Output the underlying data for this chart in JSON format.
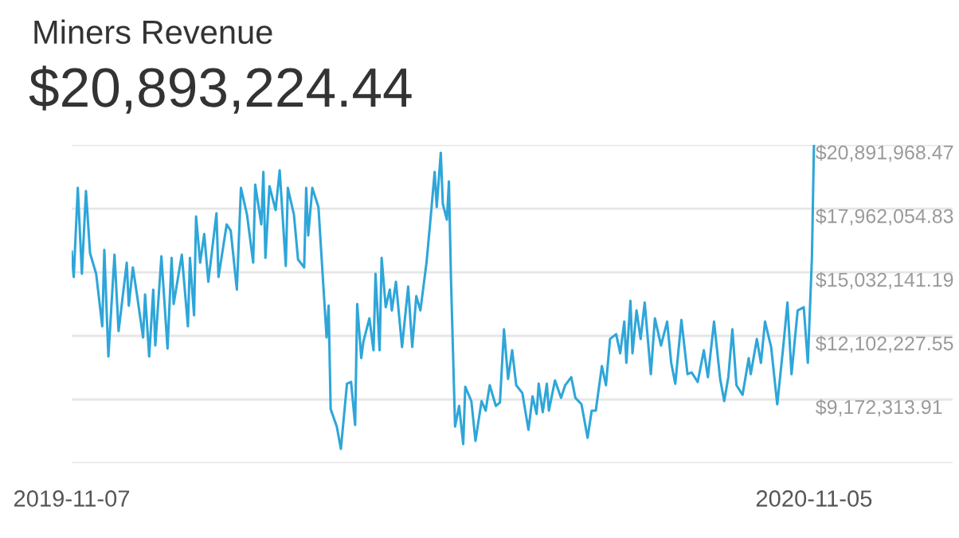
{
  "chart_data": {
    "type": "line",
    "title": "Miners Revenue",
    "subtitle": "$20,893,224.44",
    "x": [
      "2019-11-07",
      "2019-11-08",
      "2019-11-10",
      "2019-11-12",
      "2019-11-14",
      "2019-11-16",
      "2019-11-19",
      "2019-11-22",
      "2019-11-23",
      "2019-11-25",
      "2019-11-28",
      "2019-11-30",
      "2019-12-04",
      "2019-12-05",
      "2019-12-07",
      "2019-12-09",
      "2019-12-12",
      "2019-12-13",
      "2019-12-15",
      "2019-12-17",
      "2019-12-18",
      "2019-12-21",
      "2019-12-24",
      "2019-12-26",
      "2019-12-27",
      "2019-12-31",
      "2020-01-03",
      "2020-01-04",
      "2020-01-06",
      "2020-01-07",
      "2020-01-09",
      "2020-01-11",
      "2020-01-13",
      "2020-01-17",
      "2020-01-18",
      "2020-01-22",
      "2020-01-24",
      "2020-01-27",
      "2020-01-29",
      "2020-02-01",
      "2020-02-04",
      "2020-02-05",
      "2020-02-08",
      "2020-02-09",
      "2020-02-10",
      "2020-02-12",
      "2020-02-15",
      "2020-02-17",
      "2020-02-20",
      "2020-02-21",
      "2020-02-24",
      "2020-02-26",
      "2020-02-29",
      "2020-03-01",
      "2020-03-02",
      "2020-03-04",
      "2020-03-07",
      "2020-03-11",
      "2020-03-12",
      "2020-03-13",
      "2020-03-16",
      "2020-03-18",
      "2020-03-21",
      "2020-03-23",
      "2020-03-25",
      "2020-03-26",
      "2020-03-28",
      "2020-03-29",
      "2020-04-01",
      "2020-04-03",
      "2020-04-04",
      "2020-04-06",
      "2020-04-07",
      "2020-04-09",
      "2020-04-11",
      "2020-04-12",
      "2020-04-14",
      "2020-04-17",
      "2020-04-20",
      "2020-04-22",
      "2020-04-24",
      "2020-04-26",
      "2020-04-29",
      "2020-05-01",
      "2020-05-03",
      "2020-05-04",
      "2020-05-06",
      "2020-05-07",
      "2020-05-09",
      "2020-05-10",
      "2020-05-11",
      "2020-05-13",
      "2020-05-15",
      "2020-05-17",
      "2020-05-18",
      "2020-05-21",
      "2020-05-23",
      "2020-05-26",
      "2020-05-28",
      "2020-05-30",
      "2020-06-02",
      "2020-06-04",
      "2020-06-06",
      "2020-06-08",
      "2020-06-10",
      "2020-06-12",
      "2020-06-15",
      "2020-06-18",
      "2020-06-20",
      "2020-06-22",
      "2020-06-23",
      "2020-06-25",
      "2020-06-27",
      "2020-06-28",
      "2020-07-01",
      "2020-07-04",
      "2020-07-06",
      "2020-07-09",
      "2020-07-11",
      "2020-07-14",
      "2020-07-17",
      "2020-07-19",
      "2020-07-21",
      "2020-07-24",
      "2020-07-26",
      "2020-07-28",
      "2020-07-31",
      "2020-08-02",
      "2020-08-04",
      "2020-08-05",
      "2020-08-07",
      "2020-08-08",
      "2020-08-10",
      "2020-08-12",
      "2020-08-14",
      "2020-08-17",
      "2020-08-19",
      "2020-08-22",
      "2020-08-25",
      "2020-08-27",
      "2020-08-29",
      "2020-09-01",
      "2020-09-04",
      "2020-09-06",
      "2020-09-09",
      "2020-09-12",
      "2020-09-14",
      "2020-09-17",
      "2020-09-20",
      "2020-09-22",
      "2020-09-24",
      "2020-09-26",
      "2020-09-28",
      "2020-10-01",
      "2020-10-04",
      "2020-10-05",
      "2020-10-08",
      "2020-10-10",
      "2020-10-12",
      "2020-10-15",
      "2020-10-18",
      "2020-10-21",
      "2020-10-23",
      "2020-10-25",
      "2020-10-28",
      "2020-10-31",
      "2020-11-02",
      "2020-11-04",
      "2020-11-05"
    ],
    "series": [
      {
        "color": "#2ea6d9",
        "values": [
          15980000,
          14810000,
          18910000,
          14960000,
          18770000,
          15910000,
          14960000,
          12540000,
          16060000,
          11150000,
          15840000,
          12320000,
          15470000,
          13490000,
          15250000,
          14010000,
          12030000,
          14010000,
          11150000,
          14230000,
          11660000,
          15760000,
          11520000,
          15690000,
          13570000,
          15840000,
          12540000,
          15690000,
          13050000,
          17600000,
          15470000,
          16790000,
          14590000,
          17740000,
          14810000,
          17230000,
          16940000,
          14230000,
          18910000,
          17670000,
          15470000,
          19060000,
          17230000,
          19650000,
          15690000,
          18990000,
          17890000,
          19720000,
          15320000,
          18910000,
          17670000,
          15620000,
          15250000,
          18910000,
          16720000,
          18910000,
          18030000,
          12030000,
          13490000,
          8730000,
          7930000,
          6900000,
          9900000,
          9980000,
          8000000,
          13570000,
          11080000,
          11810000,
          12910000,
          11440000,
          14960000,
          11440000,
          15690000,
          13420000,
          14230000,
          13270000,
          14590000,
          11590000,
          14370000,
          11590000,
          13930000,
          13270000,
          15470000,
          17520000,
          19650000,
          18030000,
          20530000,
          18180000,
          17450000,
          19210000,
          14740000,
          7930000,
          8880000,
          7120000,
          9760000,
          9100000,
          7270000,
          9100000,
          8660000,
          9830000,
          8880000,
          9030000,
          12400000,
          10120000,
          11440000,
          9830000,
          9470000,
          7780000,
          9320000,
          8510000,
          9900000,
          8590000,
          9900000,
          8660000,
          10050000,
          9250000,
          9830000,
          10200000,
          9250000,
          8950000,
          7410000,
          8660000,
          8660000,
          10710000,
          9830000,
          11960000,
          12180000,
          11300000,
          12760000,
          10860000,
          13710000,
          11300000,
          13270000,
          11960000,
          13640000,
          10340000,
          12910000,
          11660000,
          12760000,
          10860000,
          9900000,
          12830000,
          10340000,
          10420000,
          9980000,
          11440000,
          10200000,
          12760000,
          10120000,
          9100000,
          10200000,
          12400000,
          9830000,
          9390000,
          11080000,
          10340000,
          11960000,
          10860000,
          12760000,
          11590000,
          8950000,
          11660000,
          13640000,
          10340000,
          13270000,
          13420000,
          10860000,
          15690000,
          20893224.44
        ]
      }
    ],
    "xlim": [
      "2019-11-07",
      "2021-01-12"
    ],
    "xticks": [
      {
        "value": "2019-11-07",
        "label": "2019-11-07"
      },
      {
        "value": "2020-11-05",
        "label": "2020-11-05"
      }
    ],
    "ylim": [
      6242400.27,
      20893224.44
    ],
    "yticks": [
      {
        "value": 6242400.27,
        "label": null
      },
      {
        "value": 9172313.91,
        "label": "$9,172,313.91"
      },
      {
        "value": 12102227.55,
        "label": "$12,102,227.55"
      },
      {
        "value": 15032141.19,
        "label": "$15,032,141.19"
      },
      {
        "value": 17962054.83,
        "label": "$17,962,054.83"
      },
      {
        "value": 20891968.47,
        "label": "$20,891,968.47"
      }
    ],
    "grid": "y",
    "marker": "none",
    "line_style": "solid"
  }
}
